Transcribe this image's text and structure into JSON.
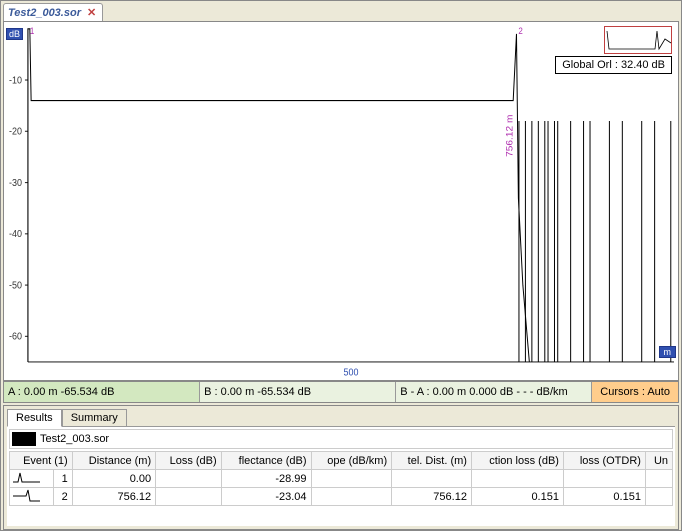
{
  "file_tab": {
    "label": "Test2_003.sor"
  },
  "chart": {
    "type": "otdr-trace",
    "y_label": "dB",
    "x_label": "m",
    "x_min": 0,
    "x_max": 1000,
    "y_min": -65,
    "y_max": 0,
    "y_ticks": [
      -10,
      -20,
      -30,
      -40,
      -50,
      -60
    ],
    "x_ticks": [
      500
    ],
    "bg_color": "#ffffff",
    "axis_color": "#333333",
    "trace_color": "#000000",
    "marker_color": "#b030b0",
    "backscatter_level_db": -14,
    "events": [
      {
        "n": 1,
        "dist": 0.0
      },
      {
        "n": 2,
        "dist": 756.12
      }
    ],
    "noise_spikes_x": [
      760,
      770,
      780,
      790,
      800,
      805,
      815,
      820,
      840,
      860,
      870,
      900,
      920,
      950,
      970,
      995
    ],
    "noise_spike_top_db": -18,
    "overview_border": "#c04040"
  },
  "orl": {
    "label": "Global Orl :",
    "value": "32.40 dB"
  },
  "cursor_bar": {
    "a": "A : 0.00 m  -65.534 dB",
    "b": "B : 0.00 m  -65.534 dB",
    "ba": "B - A : 0.00 m   0.000 dB - - - dB/km",
    "cursors": "Cursors : Auto",
    "color_a": "#d3e8c0",
    "color_b": "#eaf2e0",
    "color_cursors": "#ffcd8c"
  },
  "lower_tabs": {
    "results": "Results",
    "summary": "Summary"
  },
  "results": {
    "trace_name": "Test2_003.sor",
    "columns": [
      "Event (1)",
      "Distance (m)",
      "Loss (dB)",
      "flectance (dB)",
      "ope (dB/km)",
      "tel. Dist. (m)",
      "ction loss (dB)",
      "loss (OTDR)",
      "Un"
    ],
    "rows": [
      {
        "icon": "launch",
        "n": "1",
        "dist": "0.00",
        "loss": "",
        "refl": "-28.99",
        "slope": "",
        "reldist": "",
        "sloss": "",
        "otdr": "",
        "un": ""
      },
      {
        "icon": "end",
        "n": "2",
        "dist": "756.12",
        "loss": "",
        "refl": "-23.04",
        "slope": "",
        "reldist": "756.12",
        "sloss": "0.151",
        "otdr": "0.151",
        "un": ""
      }
    ]
  }
}
